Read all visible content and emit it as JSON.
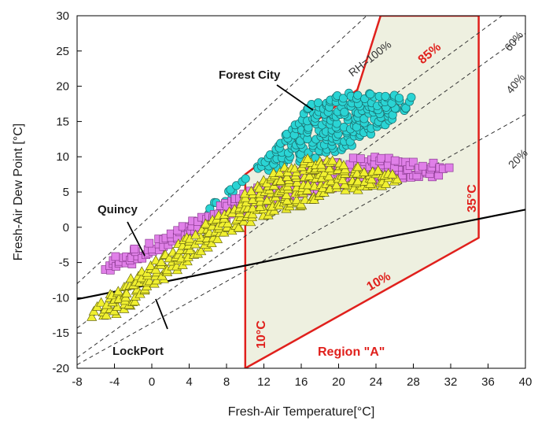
{
  "chart_data": {
    "type": "scatter",
    "title": "",
    "xlabel": "Fresh-Air Temperature[°C]",
    "ylabel": "Fresh-Air Dew Point [°C]",
    "xlim": [
      -8,
      40
    ],
    "ylim": [
      -20,
      30
    ],
    "xticks": [
      "-8",
      "-4",
      "0",
      "4",
      "8",
      "12",
      "16",
      "20",
      "24",
      "28",
      "32",
      "36",
      "40"
    ],
    "yticks": [
      "-20",
      "-15",
      "-10",
      "-5",
      "0",
      "5",
      "10",
      "15",
      "20",
      "25",
      "30"
    ],
    "grid": false,
    "legend": "none",
    "series": [
      {
        "name": "Forest City",
        "marker": "circle",
        "color": "#2ad4d4",
        "polygon": [
          [
            5,
            -1
          ],
          [
            9,
            5
          ],
          [
            14,
            13
          ],
          [
            17,
            17.5
          ],
          [
            21,
            19.2
          ],
          [
            25,
            19
          ],
          [
            28,
            18.5
          ],
          [
            27.5,
            17
          ],
          [
            24,
            13.5
          ],
          [
            20,
            10.5
          ],
          [
            15,
            9
          ],
          [
            10,
            7
          ],
          [
            6,
            3
          ]
        ]
      },
      {
        "name": "Quincy",
        "marker": "square",
        "color": "#e080e8",
        "polygon": [
          [
            -6,
            -6.5
          ],
          [
            -4,
            -4.2
          ],
          [
            3,
            0
          ],
          [
            10,
            5
          ],
          [
            15,
            8
          ],
          [
            20,
            9.6
          ],
          [
            24,
            10.2
          ],
          [
            29,
            9.2
          ],
          [
            32,
            9
          ],
          [
            32,
            7.5
          ],
          [
            27,
            6.5
          ],
          [
            22,
            6
          ],
          [
            14,
            4
          ],
          [
            8,
            1
          ],
          [
            2,
            -2.5
          ],
          [
            -3,
            -5.8
          ],
          [
            -5,
            -6.8
          ]
        ]
      },
      {
        "name": "LockPort",
        "marker": "triangle",
        "color": "#f0f030",
        "polygon": [
          [
            -7,
            -12.5
          ],
          [
            -5,
            -10
          ],
          [
            -1,
            -6
          ],
          [
            4,
            -1
          ],
          [
            8,
            2.5
          ],
          [
            11,
            6
          ],
          [
            14,
            8.5
          ],
          [
            17,
            10
          ],
          [
            20,
            9.5
          ],
          [
            23,
            8.5
          ],
          [
            26,
            7.5
          ],
          [
            26.5,
            6.5
          ],
          [
            24,
            5.5
          ],
          [
            20,
            5
          ],
          [
            16,
            3
          ],
          [
            11,
            1
          ],
          [
            7,
            -2
          ],
          [
            3,
            -6
          ],
          [
            0,
            -9
          ],
          [
            -2,
            -11
          ],
          [
            -4,
            -12.5
          ],
          [
            -6,
            -13
          ]
        ]
      }
    ],
    "rh_lines": [
      {
        "rh": 100,
        "label": "RH=100%",
        "points": [
          [
            -8,
            -8
          ],
          [
            23,
            30
          ]
        ]
      },
      {
        "rh": 60,
        "label": "60%",
        "points": [
          [
            -8,
            -14.3
          ],
          [
            37.5,
            30
          ]
        ]
      },
      {
        "rh": 40,
        "label": "40%",
        "points": [
          [
            -8,
            -18.5
          ],
          [
            40,
            27.5
          ]
        ]
      },
      {
        "rh": 20,
        "label": "20%",
        "points": [
          [
            -8,
            -19.5
          ],
          [
            40,
            16
          ]
        ]
      },
      {
        "rh": 10,
        "label": "10%",
        "points": [
          [
            -8,
            -10.2
          ],
          [
            40,
            2.5
          ]
        ]
      }
    ],
    "region": {
      "name": "Region \"A\"",
      "color": "#e0201c",
      "fill": "#eef0e0",
      "polygon": [
        [
          10,
          7.5
        ],
        [
          22,
          19.5
        ],
        [
          24.5,
          30
        ],
        [
          35,
          30
        ],
        [
          35,
          -1.5
        ],
        [
          10,
          -20
        ]
      ],
      "edge_labels": [
        "85%",
        "10%",
        "10°C",
        "35°C"
      ]
    }
  }
}
